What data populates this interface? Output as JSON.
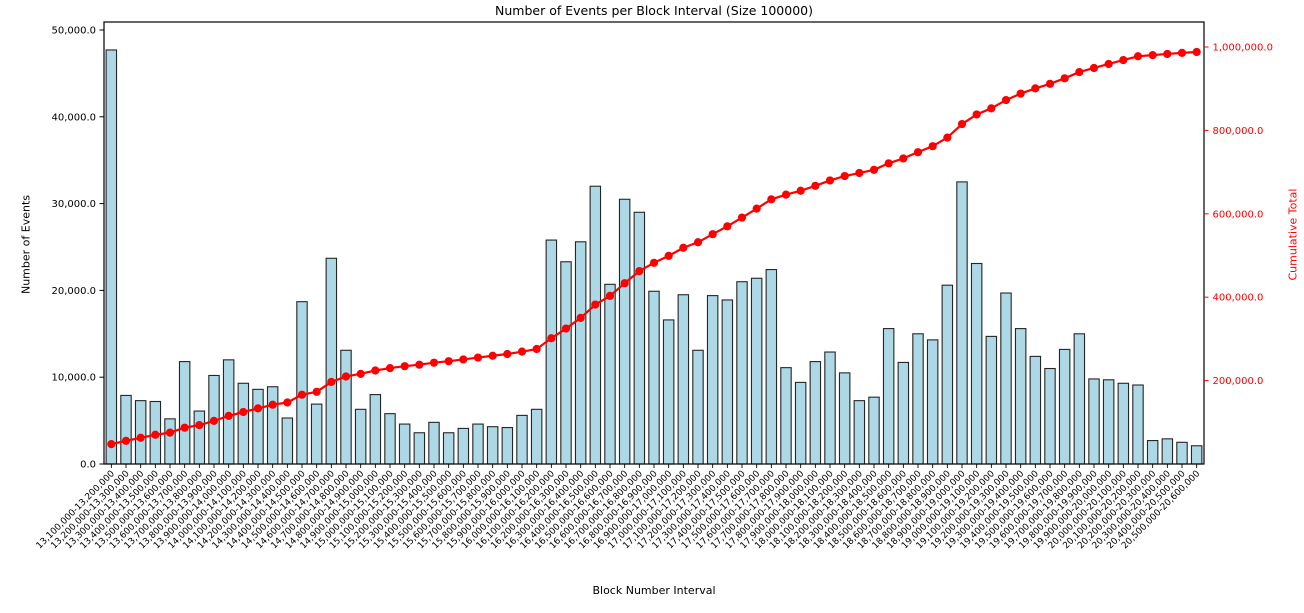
{
  "title": "Number of Events per Block Interval (Size 100000)",
  "chart_data": {
    "type": "bar",
    "title": "Number of Events per Block Interval (Size 100000)",
    "xlabel": "Block Number Interval",
    "ylabel_left": "Number of Events",
    "ylabel_right": "Cumulative Total",
    "grid": false,
    "legend": "none",
    "x_tick_rotation": 45,
    "y_left_range": [
      0,
      50000
    ],
    "y_right_range": [
      0,
      1000000
    ],
    "colors": {
      "bar_fill": "#add8e6",
      "bar_edge": "#262626",
      "line": "#ff0000",
      "right_axis_text": "#ff0000",
      "axis_text": "#000000"
    },
    "y_left_ticks": {
      "values": [
        0,
        10000,
        20000,
        30000,
        40000,
        50000
      ],
      "labels": [
        "0.0",
        "10,000.0",
        "20,000.0",
        "30,000.0",
        "40,000.0",
        "50,000.0"
      ]
    },
    "y_right_ticks": {
      "values": [
        200000,
        400000,
        600000,
        800000,
        1000000
      ],
      "labels": [
        "200,000.0",
        "400,000.0",
        "600,000.0",
        "800,000.0",
        "1,000,000.0"
      ]
    },
    "categories": [
      "13,100,000-13,200,000",
      "13,200,000-13,300,000",
      "13,300,000-13,400,000",
      "13,400,000-13,500,000",
      "13,500,000-13,600,000",
      "13,600,000-13,700,000",
      "13,700,000-13,800,000",
      "13,800,000-13,900,000",
      "13,900,000-14,000,000",
      "14,000,000-14,100,000",
      "14,100,000-14,200,000",
      "14,200,000-14,300,000",
      "14,300,000-14,400,000",
      "14,400,000-14,500,000",
      "14,500,000-14,600,000",
      "14,600,000-14,700,000",
      "14,700,000-14,800,000",
      "14,800,000-14,900,000",
      "14,900,000-15,000,000",
      "15,000,000-15,100,000",
      "15,100,000-15,200,000",
      "15,200,000-15,300,000",
      "15,300,000-15,400,000",
      "15,400,000-15,500,000",
      "15,500,000-15,600,000",
      "15,600,000-15,700,000",
      "15,700,000-15,800,000",
      "15,800,000-15,900,000",
      "15,900,000-16,000,000",
      "16,000,000-16,100,000",
      "16,100,000-16,200,000",
      "16,200,000-16,300,000",
      "16,300,000-16,400,000",
      "16,400,000-16,500,000",
      "16,500,000-16,600,000",
      "16,600,000-16,700,000",
      "16,700,000-16,800,000",
      "16,800,000-16,900,000",
      "16,900,000-17,000,000",
      "17,000,000-17,100,000",
      "17,100,000-17,200,000",
      "17,200,000-17,300,000",
      "17,300,000-17,400,000",
      "17,400,000-17,500,000",
      "17,500,000-17,600,000",
      "17,600,000-17,700,000",
      "17,700,000-17,800,000",
      "17,800,000-17,900,000",
      "17,900,000-18,000,000",
      "18,000,000-18,100,000",
      "18,100,000-18,200,000",
      "18,200,000-18,300,000",
      "18,300,000-18,400,000",
      "18,400,000-18,500,000",
      "18,500,000-18,600,000",
      "18,600,000-18,700,000",
      "18,700,000-18,800,000",
      "18,800,000-18,900,000",
      "18,900,000-19,000,000",
      "19,000,000-19,100,000",
      "19,100,000-19,200,000",
      "19,200,000-19,300,000",
      "19,300,000-19,400,000",
      "19,400,000-19,500,000",
      "19,500,000-19,600,000",
      "19,600,000-19,700,000",
      "19,700,000-19,800,000",
      "19,800,000-19,900,000",
      "19,900,000-20,000,000",
      "20,000,000-20,100,000",
      "20,100,000-20,200,000",
      "20,200,000-20,300,000",
      "20,300,000-20,400,000",
      "20,400,000-20,500,000",
      "20,500,000-20,600,000"
    ],
    "series": [
      {
        "name": "Number of Events",
        "type": "bar",
        "values": [
          47700,
          7900,
          7300,
          7200,
          5200,
          11800,
          6100,
          10200,
          12000,
          9300,
          8600,
          8900,
          5300,
          18700,
          6900,
          23700,
          13100,
          6300,
          8000,
          5800,
          4600,
          3600,
          4800,
          3600,
          4100,
          4600,
          4300,
          4200,
          5600,
          6300,
          25800,
          23300,
          25600,
          32000,
          20700,
          30500,
          29000,
          19900,
          16600,
          19500,
          13100,
          19400,
          18900,
          21000,
          21400,
          22400,
          11100,
          9400,
          11800,
          12900,
          10500,
          7300,
          7700,
          15600,
          11700,
          15000,
          14300,
          20600,
          32500,
          23100,
          14700,
          19700,
          15600,
          12400,
          11000,
          13200,
          15000,
          9800,
          9700,
          9300,
          9100,
          2700,
          2900,
          2500,
          2100
        ]
      },
      {
        "name": "Cumulative Total",
        "type": "line",
        "values": [
          47700,
          55600,
          62900,
          70100,
          75300,
          87100,
          93200,
          103400,
          115400,
          124700,
          133300,
          142200,
          147500,
          166200,
          173100,
          196800,
          209900,
          216200,
          224200,
          230000,
          234600,
          238200,
          243000,
          246600,
          250700,
          255300,
          259600,
          263800,
          269400,
          275700,
          301500,
          324800,
          350400,
          382400,
          403100,
          433600,
          462600,
          482500,
          499100,
          518600,
          531700,
          551100,
          570000,
          591000,
          612400,
          634800,
          645900,
          655300,
          667100,
          680000,
          690500,
          697800,
          705500,
          721100,
          732800,
          747800,
          762100,
          782700,
          815200,
          838300,
          853000,
          872700,
          888300,
          900700,
          911700,
          924900,
          939900,
          949700,
          959400,
          968700,
          977800,
          980500,
          983400,
          985900,
          988000
        ]
      }
    ]
  }
}
